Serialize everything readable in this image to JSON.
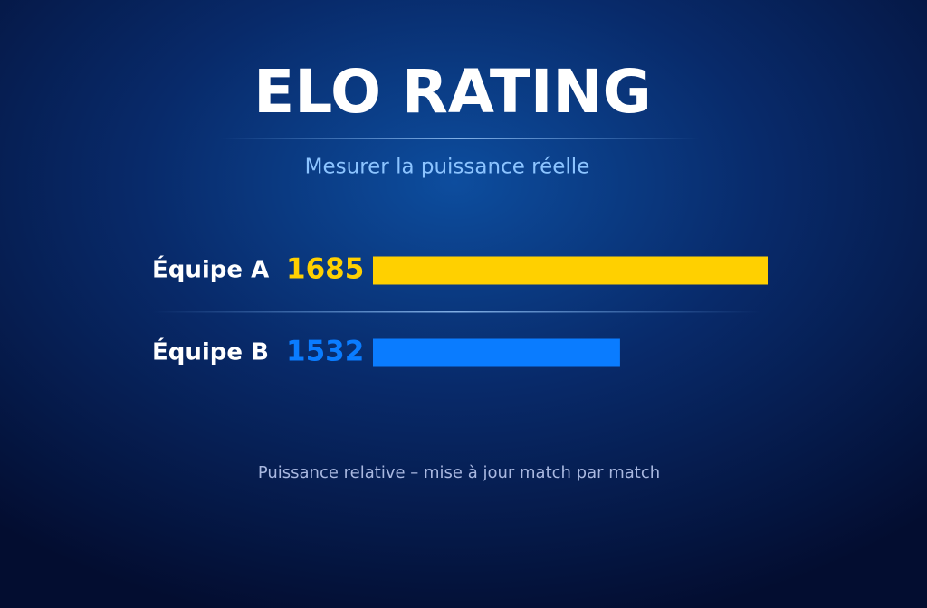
{
  "chart_data": {
    "type": "bar",
    "orientation": "horizontal",
    "title": "ELO RATING",
    "subtitle": "Mesurer la puissance réelle",
    "categories": [
      "Équipe A",
      "Équipe B"
    ],
    "values": [
      1685,
      1532
    ],
    "colors": [
      "#ffd000",
      "#0a7cff"
    ],
    "xlim": [
      1276,
      1685
    ],
    "annotation": "Puissance relative – mise à jour match par match"
  }
}
